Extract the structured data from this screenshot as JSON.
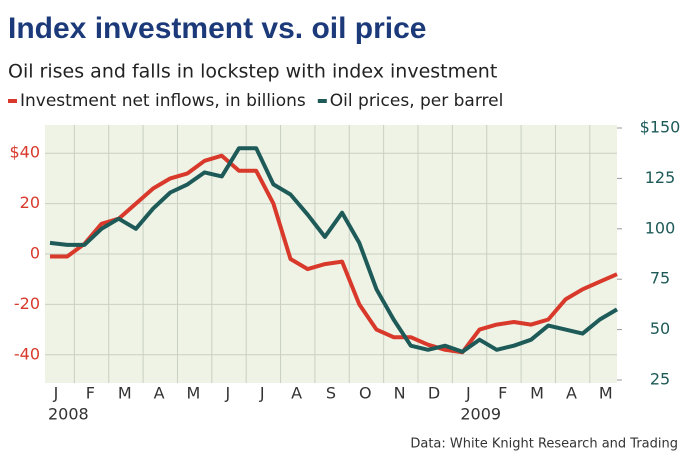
{
  "chart_data": {
    "type": "line",
    "title": "Index investment vs. oil price",
    "subtitle": "Oil rises and falls in lockstep with index investment",
    "source": "Data: White Knight Research and Trading",
    "years": [
      "2008",
      "2009"
    ],
    "categories": [
      "J",
      null,
      "F",
      null,
      "M",
      null,
      "A",
      null,
      "M",
      null,
      "J",
      null,
      "J",
      null,
      "A",
      null,
      "S",
      null,
      "O",
      null,
      "N",
      null,
      "D",
      null,
      "J",
      null,
      "F",
      null,
      "M",
      null,
      "A",
      null,
      "M",
      null
    ],
    "series": [
      {
        "name": "Investment net inflows, in billions",
        "color": "#d8392b",
        "axis": "y",
        "values": [
          -1,
          -1,
          4,
          12,
          14,
          20,
          26,
          30,
          32,
          37,
          39,
          33,
          33,
          20,
          -2,
          -6,
          -4,
          -3,
          -20,
          -30,
          -33,
          -33,
          -36,
          -38,
          -39,
          -30,
          -28,
          -27,
          -28,
          -26,
          -18,
          -14,
          -11,
          -8
        ]
      },
      {
        "name": "Oil prices, per barrel",
        "color": "#1d5a58",
        "axis": "y2",
        "values": [
          93,
          92,
          92,
          100,
          105,
          100,
          110,
          118,
          122,
          128,
          126,
          140,
          140,
          122,
          117,
          107,
          96,
          108,
          93,
          70,
          55,
          42,
          40,
          42,
          39,
          45,
          40,
          42,
          45,
          52,
          50,
          48,
          55,
          60
        ]
      }
    ],
    "ylim": [
      -50,
      50
    ],
    "yticks": [
      -40,
      -20,
      0,
      20,
      {
        "value": 40,
        "label": "$40"
      }
    ],
    "y2lim": [
      25,
      150
    ],
    "y2ticks": [
      25,
      50,
      75,
      100,
      125,
      {
        "value": 150,
        "label": "$150"
      }
    ],
    "grid": true
  }
}
